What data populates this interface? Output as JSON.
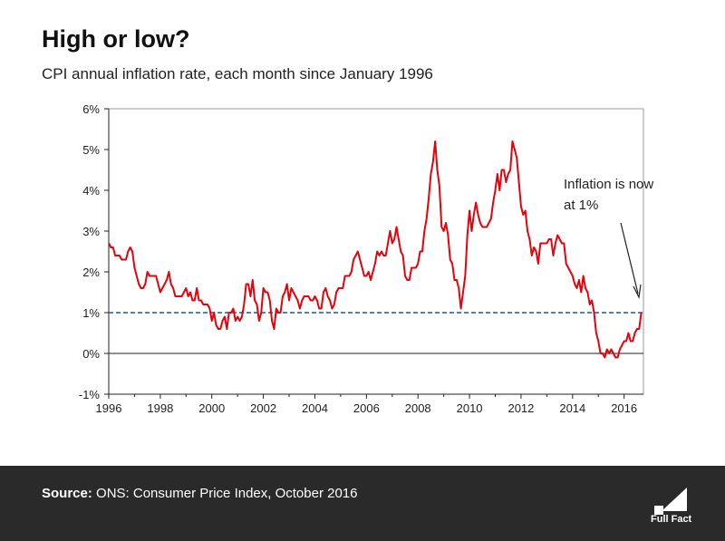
{
  "title": "High or low?",
  "subtitle": "CPI annual inflation rate, each month since January 1996",
  "footer": {
    "source_label": "Source:",
    "source_text": " ONS: Consumer Price Index, October 2016",
    "logo_text": "Full Fact"
  },
  "colors": {
    "line": "#e8000b",
    "reference": "#1f5a8a",
    "footer_bg": "#2a2a2a"
  },
  "chart_data": {
    "type": "line",
    "title": "High or low?",
    "subtitle": "CPI annual inflation rate, each month since January 1996",
    "xlabel": "",
    "ylabel": "",
    "xlim": [
      1996.0,
      2016.75
    ],
    "ylim": [
      -1,
      6
    ],
    "x_ticks": [
      1996,
      1998,
      2000,
      2002,
      2004,
      2006,
      2008,
      2010,
      2012,
      2014,
      2016
    ],
    "x_tick_labels": [
      "1996",
      "1998",
      "2000",
      "2002",
      "2004",
      "2006",
      "2008",
      "2010",
      "2012",
      "2014",
      "2016"
    ],
    "y_ticks": [
      -1,
      0,
      1,
      2,
      3,
      4,
      5,
      6
    ],
    "y_tick_labels": [
      "-1%",
      "0%",
      "1%",
      "2%",
      "3%",
      "4%",
      "5%",
      "6%"
    ],
    "grid": false,
    "reference_line": {
      "value": 1,
      "style": "dashed"
    },
    "annotation": {
      "lines": [
        "Inflation is now",
        "at 1%"
      ],
      "points_to": [
        2016.75,
        1.3
      ]
    },
    "series": [
      {
        "name": "CPI annual inflation rate",
        "start": "1996-01",
        "frequency": "monthly",
        "values": [
          2.7,
          2.6,
          2.6,
          2.4,
          2.4,
          2.4,
          2.3,
          2.3,
          2.3,
          2.5,
          2.6,
          2.5,
          2.1,
          1.9,
          1.7,
          1.6,
          1.6,
          1.7,
          2.0,
          1.9,
          1.9,
          1.9,
          1.9,
          1.7,
          1.5,
          1.6,
          1.7,
          1.8,
          2.0,
          1.7,
          1.6,
          1.4,
          1.4,
          1.4,
          1.4,
          1.5,
          1.6,
          1.4,
          1.5,
          1.3,
          1.3,
          1.6,
          1.3,
          1.3,
          1.2,
          1.2,
          1.2,
          1.1,
          0.8,
          1.0,
          0.7,
          0.6,
          0.6,
          0.8,
          0.9,
          0.6,
          1.0,
          1.0,
          1.1,
          0.8,
          0.9,
          0.8,
          0.9,
          1.2,
          1.7,
          1.7,
          1.4,
          1.8,
          1.3,
          1.2,
          0.8,
          1.0,
          1.6,
          1.5,
          1.5,
          1.3,
          0.8,
          0.6,
          1.1,
          1.0,
          1.0,
          1.4,
          1.5,
          1.7,
          1.3,
          1.6,
          1.5,
          1.4,
          1.3,
          1.1,
          1.3,
          1.4,
          1.4,
          1.4,
          1.3,
          1.3,
          1.4,
          1.3,
          1.1,
          1.1,
          1.5,
          1.6,
          1.4,
          1.3,
          1.1,
          1.2,
          1.5,
          1.6,
          1.6,
          1.6,
          1.9,
          1.9,
          1.9,
          2.0,
          2.3,
          2.4,
          2.5,
          2.3,
          2.1,
          1.9,
          1.9,
          2.0,
          1.8,
          2.0,
          2.2,
          2.5,
          2.4,
          2.5,
          2.4,
          2.4,
          2.7,
          3.0,
          2.7,
          2.8,
          3.1,
          2.8,
          2.5,
          2.4,
          1.9,
          1.8,
          1.8,
          2.1,
          2.1,
          2.1,
          2.2,
          2.5,
          2.5,
          3.0,
          3.3,
          3.8,
          4.4,
          4.7,
          5.2,
          4.5,
          4.1,
          3.1,
          3.0,
          3.2,
          2.9,
          2.3,
          2.2,
          1.8,
          1.8,
          1.6,
          1.1,
          1.5,
          1.9,
          2.9,
          3.5,
          3.0,
          3.4,
          3.7,
          3.4,
          3.2,
          3.1,
          3.1,
          3.1,
          3.2,
          3.3,
          3.7,
          4.0,
          4.4,
          4.0,
          4.5,
          4.5,
          4.2,
          4.4,
          4.5,
          5.2,
          5.0,
          4.8,
          4.2,
          3.6,
          3.4,
          3.5,
          3.0,
          2.8,
          2.4,
          2.6,
          2.5,
          2.2,
          2.7,
          2.7,
          2.7,
          2.7,
          2.8,
          2.8,
          2.4,
          2.7,
          2.9,
          2.8,
          2.7,
          2.7,
          2.2,
          2.1,
          2.0,
          1.9,
          1.7,
          1.6,
          1.8,
          1.5,
          1.9,
          1.6,
          1.5,
          1.2,
          1.3,
          1.0,
          0.5,
          0.3,
          0.0,
          0.0,
          -0.1,
          0.1,
          0.0,
          0.1,
          0.0,
          -0.1,
          -0.1,
          0.1,
          0.2,
          0.3,
          0.3,
          0.5,
          0.3,
          0.3,
          0.5,
          0.6,
          0.6,
          1.0
        ]
      }
    ]
  }
}
